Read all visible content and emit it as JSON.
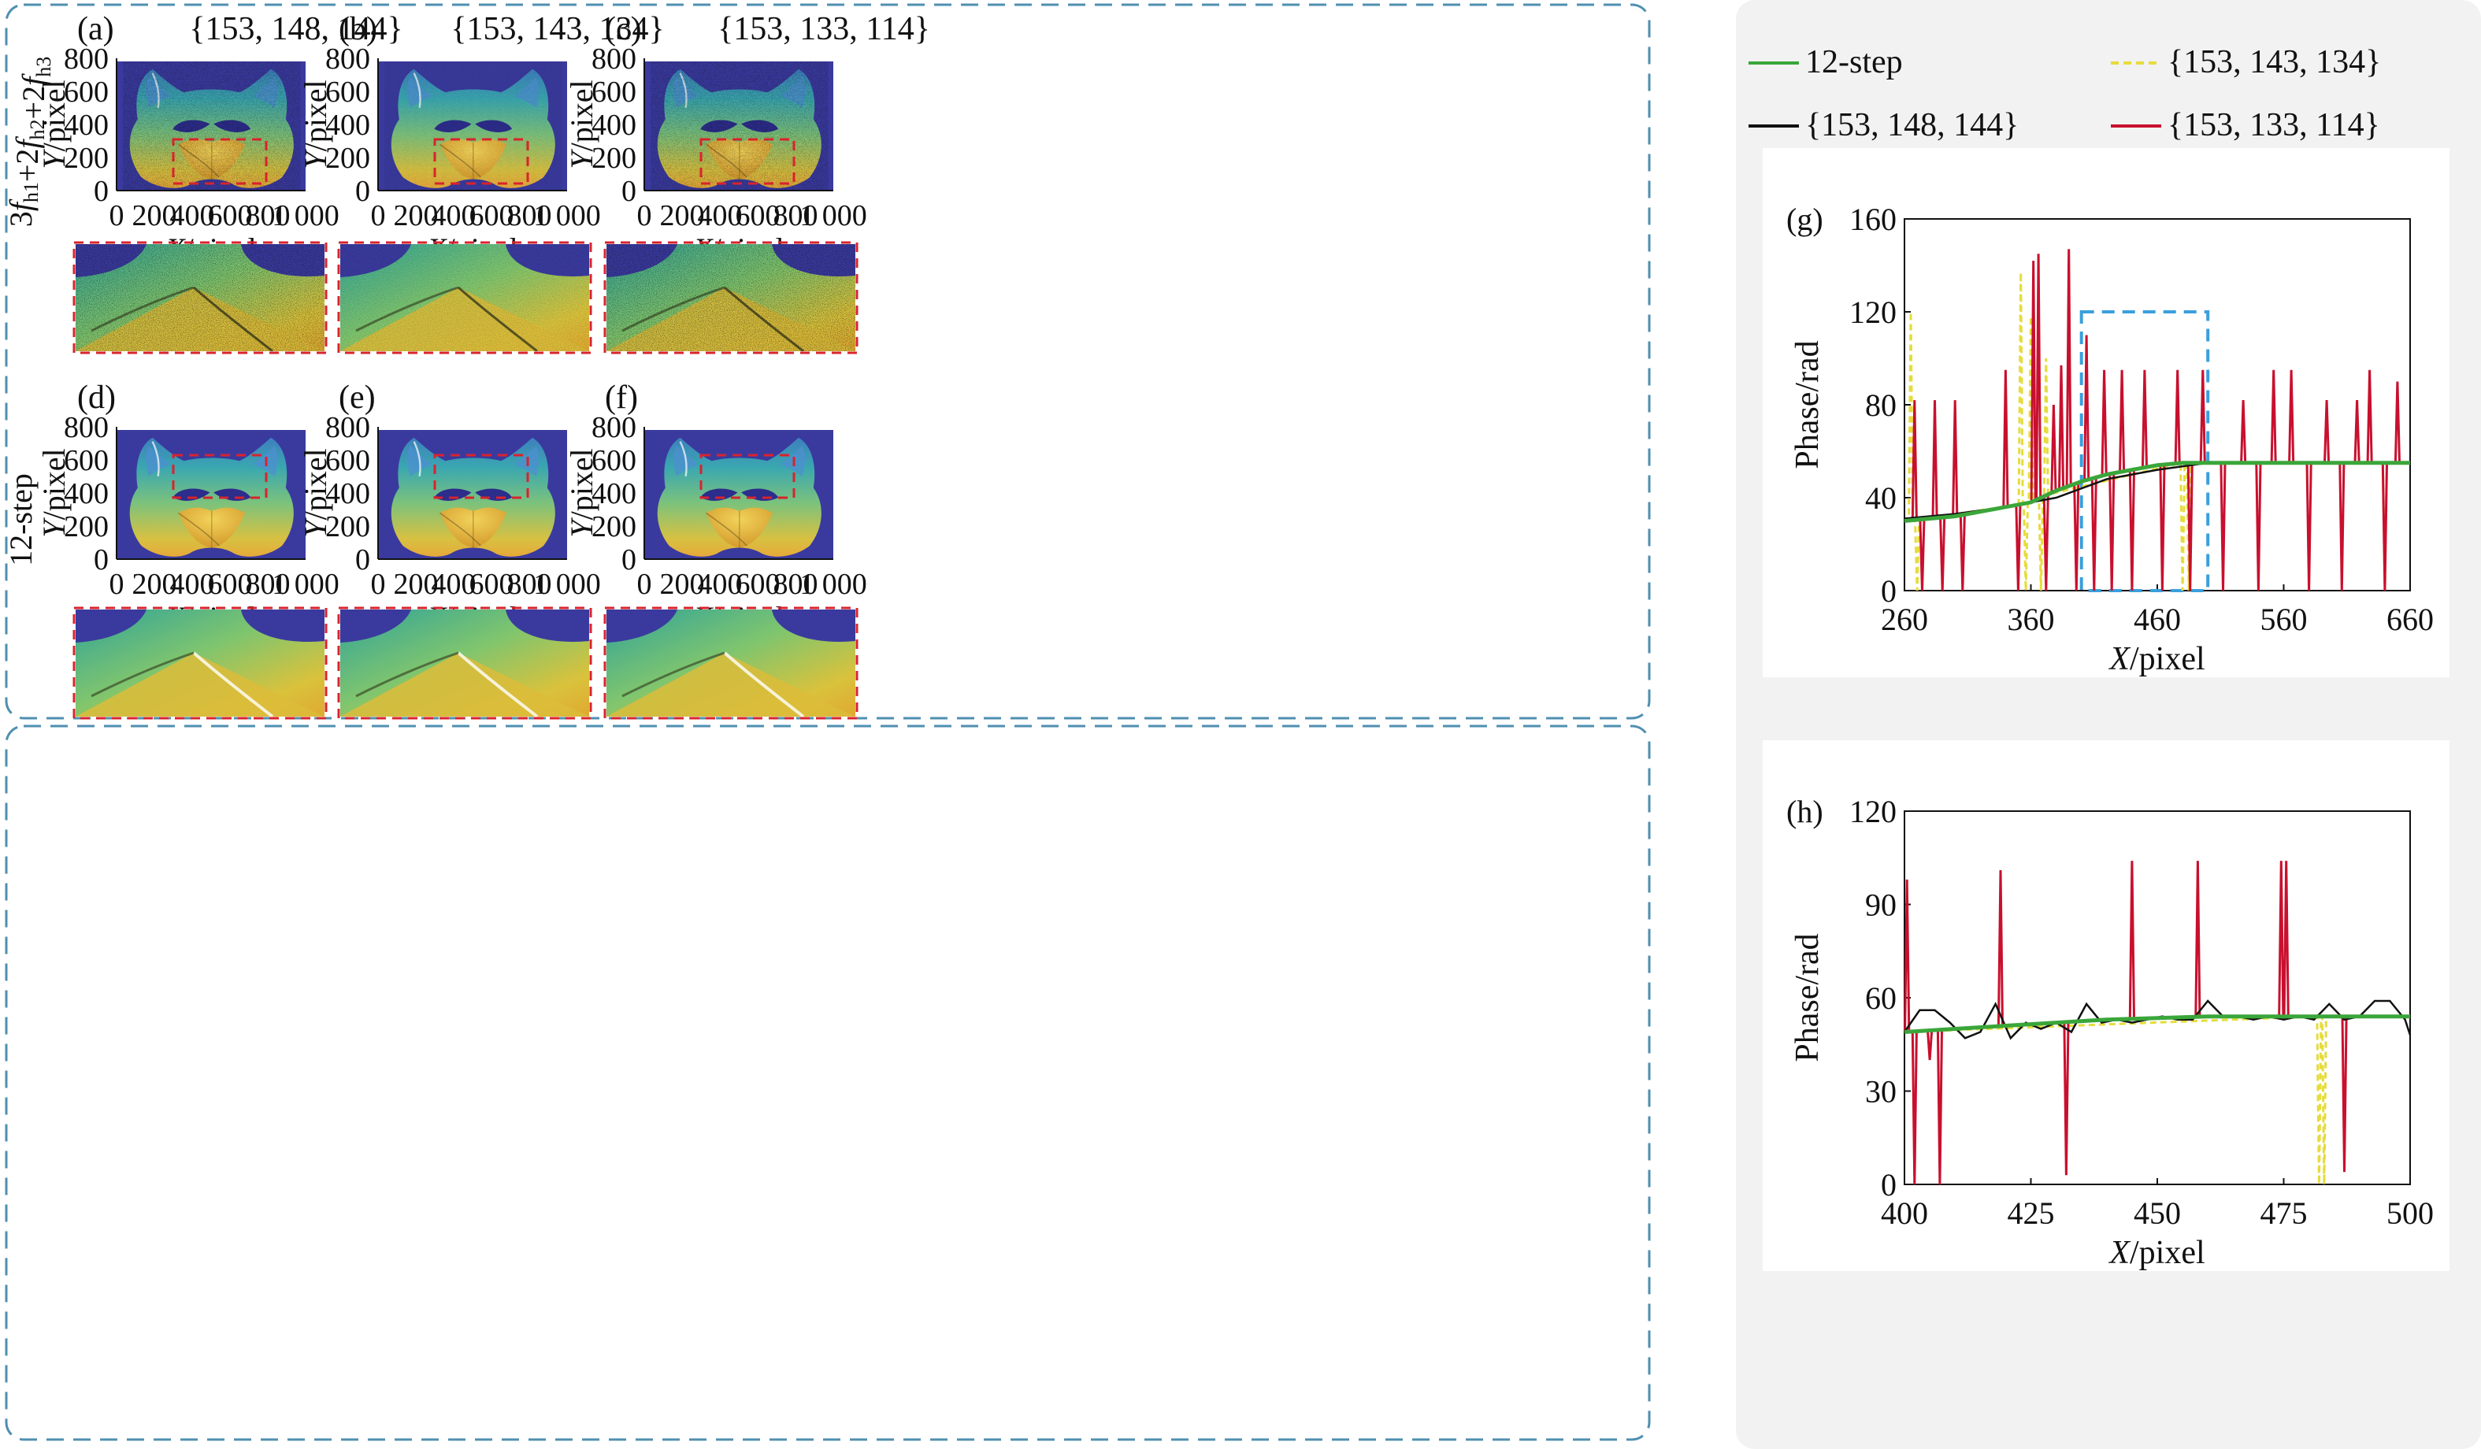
{
  "rows": [
    {
      "row_label": "3f_h1+2f_h2+2f_h3",
      "panels": [
        {
          "letter": "(a)",
          "title": "{153, 148, 144}"
        },
        {
          "letter": "(b)",
          "title": "{153, 143, 134}"
        },
        {
          "letter": "(c)",
          "title": "{153, 133, 114}"
        }
      ]
    },
    {
      "row_label": "12-step",
      "panels": [
        {
          "letter": "(d)",
          "title": ""
        },
        {
          "letter": "(e)",
          "title": ""
        },
        {
          "letter": "(f)",
          "title": ""
        }
      ]
    }
  ],
  "mask_axes": {
    "y_label_italic": "Y",
    "x_label_italic": "X",
    "label_suffix": "/pixel",
    "y_ticks": [
      "800",
      "600",
      "400",
      "200",
      "0"
    ],
    "x_ticks": [
      "0",
      "200",
      "400",
      "600",
      "800",
      "1 000"
    ]
  },
  "colors": {
    "background_blue": "#3a3a9e",
    "roi_dashed": "#d9232d",
    "group_frame": "#4f8fb0",
    "sidebar_bg": "#f2f2f2",
    "series_12step": "#3aa63a",
    "series_153_148_144": "#111111",
    "series_153_143_134": "#e6dc3c",
    "series_153_133_114": "#c8102e",
    "zoom_box": "#3a9fdc"
  },
  "legend": [
    {
      "label": "12-step",
      "color": "#3aa63a",
      "dash": "solid"
    },
    {
      "label": "{153, 143, 134}",
      "color": "#e6dc3c",
      "dash": "dashed"
    },
    {
      "label": "{153, 148, 144}",
      "color": "#111111",
      "dash": "solid"
    },
    {
      "label": "{153, 133, 114}",
      "color": "#c8102e",
      "dash": "solid"
    }
  ],
  "chart_data": [
    {
      "type": "line",
      "panel": "(g)",
      "xlabel_italic": "X",
      "xlabel": "/pixel",
      "ylabel": "Phase/rad",
      "xlim": [
        260,
        660
      ],
      "ylim": [
        0,
        160
      ],
      "xticks": [
        260,
        360,
        460,
        560,
        660
      ],
      "yticks": [
        0,
        40,
        80,
        120,
        160
      ],
      "zoom_box": {
        "x": [
          400,
          500
        ],
        "y": [
          0,
          120
        ]
      },
      "series": [
        {
          "name": "12-step",
          "style": "baseline",
          "x": [
            260,
            300,
            330,
            360,
            380,
            400,
            420,
            440,
            460,
            480,
            500,
            520,
            560,
            600,
            640,
            660
          ],
          "y": [
            30,
            32,
            35,
            38,
            43,
            47,
            50,
            52,
            54,
            55,
            55,
            55,
            55,
            55,
            55,
            55
          ]
        },
        {
          "name": "{153, 148, 144}",
          "style": "noisy",
          "x": [
            260,
            300,
            340,
            380,
            420,
            460,
            500,
            540,
            580,
            620,
            660
          ],
          "y": [
            31,
            33,
            36,
            40,
            48,
            52,
            55,
            55,
            55,
            55,
            55
          ]
        },
        {
          "name": "{153, 143, 134}",
          "style": "spiky",
          "spike_x": [
            265,
            270,
            352,
            356,
            360,
            368,
            372,
            480,
            485,
            640
          ],
          "spike_y": [
            120,
            0,
            137,
            0,
            118,
            0,
            100,
            0,
            0,
            0
          ]
        },
        {
          "name": "{153, 133, 114}",
          "style": "spiky",
          "spike_x": [
            268,
            274,
            284,
            290,
            300,
            306,
            340,
            350,
            362,
            366,
            372,
            378,
            384,
            390,
            396,
            404,
            410,
            418,
            424,
            432,
            440,
            450,
            464,
            476,
            486,
            496,
            512,
            528,
            540,
            552,
            566,
            580,
            594,
            606,
            618,
            628,
            640,
            650
          ],
          "spike_y": [
            82,
            0,
            82,
            0,
            82,
            0,
            95,
            0,
            142,
            145,
            0,
            80,
            97,
            147,
            0,
            110,
            0,
            95,
            0,
            95,
            0,
            95,
            0,
            95,
            0,
            95,
            0,
            82,
            0,
            95,
            95,
            0,
            82,
            0,
            82,
            95,
            0,
            90
          ]
        }
      ]
    },
    {
      "type": "line",
      "panel": "(h)",
      "xlabel_italic": "X",
      "xlabel": "/pixel",
      "ylabel": "Phase/rad",
      "xlim": [
        400,
        500
      ],
      "ylim": [
        0,
        120
      ],
      "xticks": [
        400,
        425,
        450,
        475,
        500
      ],
      "yticks": [
        0,
        30,
        60,
        90,
        120
      ],
      "series": [
        {
          "name": "12-step",
          "style": "baseline",
          "x": [
            400,
            410,
            420,
            430,
            440,
            450,
            460,
            470,
            480,
            490,
            500
          ],
          "y": [
            49,
            50,
            51,
            52,
            53,
            53.5,
            54,
            54,
            54,
            54,
            54
          ]
        },
        {
          "name": "{153, 148, 144}",
          "style": "noisy",
          "x": [
            400,
            403,
            406,
            409,
            412,
            415,
            418,
            421,
            424,
            427,
            430,
            433,
            436,
            439,
            442,
            445,
            448,
            451,
            454,
            457,
            460,
            463,
            466,
            469,
            472,
            475,
            478,
            481,
            484,
            487,
            490,
            493,
            496,
            499,
            500
          ],
          "y": [
            49,
            56,
            56,
            52,
            47,
            49,
            58,
            47,
            52,
            50,
            52,
            49,
            58,
            52,
            53,
            52,
            53,
            54,
            53,
            53,
            59,
            54,
            54,
            53,
            54,
            53,
            54,
            53,
            58,
            53,
            54,
            59,
            59,
            53,
            48
          ]
        },
        {
          "name": "{153, 143, 134}",
          "style": "spiky",
          "spike_x": [
            482,
            483
          ],
          "spike_y": [
            0,
            0
          ]
        },
        {
          "name": "{153, 133, 114}",
          "style": "spiky",
          "spike_x": [
            400.5,
            402,
            405,
            407,
            419,
            432,
            445,
            458,
            474.5,
            475.5,
            487
          ],
          "spike_y": [
            98,
            0,
            40,
            0,
            101,
            3,
            104,
            104,
            104,
            104,
            4
          ]
        }
      ]
    }
  ]
}
